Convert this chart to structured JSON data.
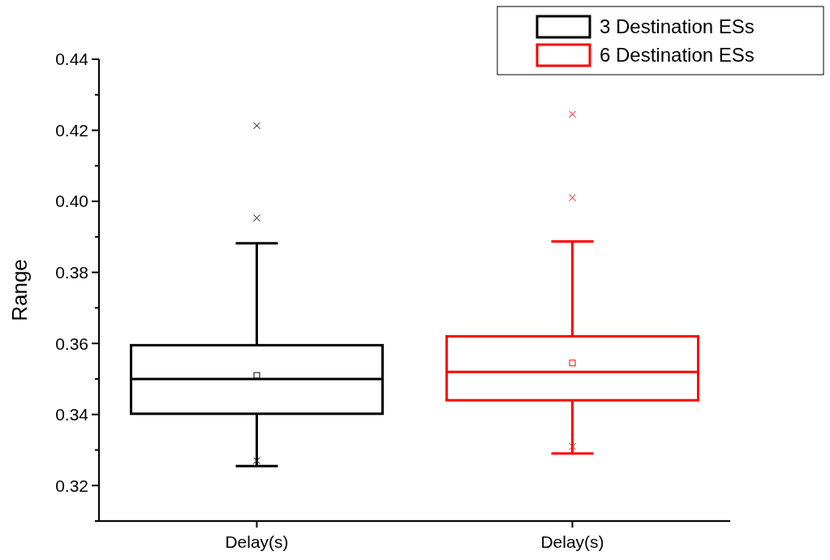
{
  "chart_data": {
    "type": "box",
    "ylabel": "Range",
    "categories": [
      "Delay(s)",
      "Delay(s)"
    ],
    "ylim": [
      0.31,
      0.44
    ],
    "yticks": [
      {
        "value": 0.31,
        "label": null
      },
      0.32,
      {
        "value": 0.33,
        "label": null
      },
      0.34,
      {
        "value": 0.35,
        "label": null
      },
      0.36,
      {
        "value": 0.37,
        "label": null
      },
      0.38,
      {
        "value": 0.39,
        "label": null
      },
      {
        "value": 0.4,
        "label": "0.40"
      },
      {
        "value": 0.41,
        "label": null
      },
      0.42,
      {
        "value": 0.43,
        "label": null
      },
      0.44
    ],
    "grid": false,
    "legend": "top right",
    "series": [
      {
        "name": "3 Destination ESs",
        "color": "#000000",
        "boxes": [
          {
            "low": 0.3255,
            "q1": 0.3402,
            "median": 0.35,
            "q3": 0.3595,
            "high": 0.3882,
            "mean": 0.351,
            "outliers": [
              0.3953,
              0.4213,
              0.327
            ]
          },
          null
        ]
      },
      {
        "name": "6 Destination ESs",
        "color": "#ff0000",
        "boxes": [
          null,
          {
            "low": 0.329,
            "q1": 0.344,
            "median": 0.352,
            "q3": 0.362,
            "high": 0.3887,
            "mean": 0.3545,
            "outliers": [
              0.401,
              0.4245,
              0.331
            ]
          }
        ]
      }
    ]
  }
}
